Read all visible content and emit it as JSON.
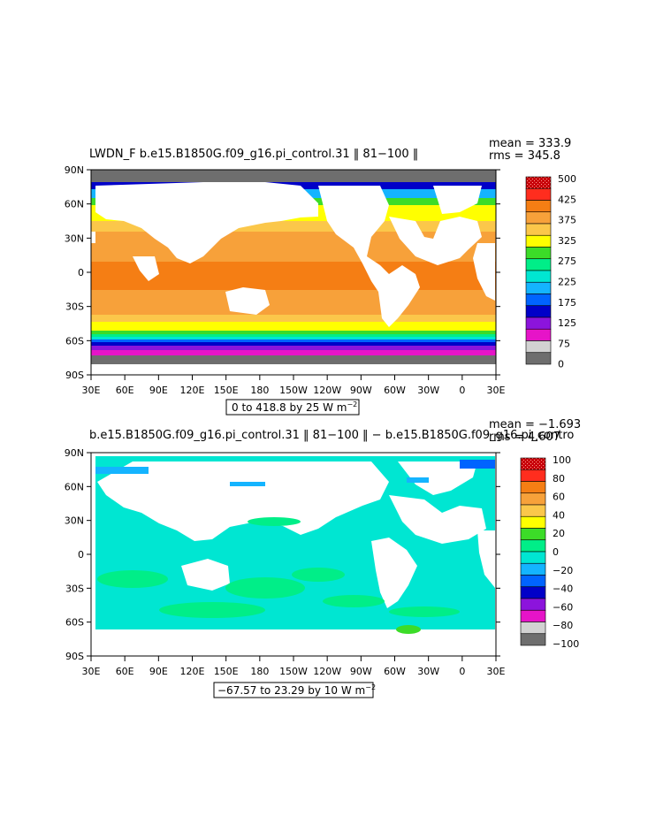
{
  "panels": [
    {
      "title": "LWDN_F  b.e15.B1850G.f09_g16.pi_control.31  ‖ 81−100 ‖",
      "mean_label": "mean = 333.9",
      "rms_label": "rms = 345.8",
      "contour_info": "0 to 418.8 by 25  W m",
      "unit_exp": "−2",
      "legend_labels": [
        "500",
        "425",
        "375",
        "325",
        "275",
        "225",
        "175",
        "125",
        "75",
        "0"
      ],
      "legend_colors": [
        "#c8000a",
        "#ff2d1e",
        "#f57e14",
        "#f7a13a",
        "#fbc74a",
        "#ffff00",
        "#3cdc28",
        "#00ee88",
        "#00e6d2",
        "#14b4ff",
        "#0064ff",
        "#0000c8",
        "#8c14dc",
        "#e614c8",
        "#d2d2d2",
        "#6e6e6e"
      ]
    },
    {
      "title": "b.e15.B1850G.f09_g16.pi_control.31  ‖ 81−100 ‖  −  b.e15.B1850G.f09_g16.pi_contro",
      "mean_label": "mean = −1.693",
      "rms_label": "rms = 4.607",
      "contour_info": "−67.57 to 23.29 by 10  W m",
      "unit_exp": "−2",
      "legend_labels": [
        "100",
        "80",
        "60",
        "40",
        "20",
        "0",
        "−20",
        "−40",
        "−60",
        "−80",
        "−100"
      ],
      "legend_colors": [
        "#c8000a",
        "#ff2d1e",
        "#f57e14",
        "#f7a13a",
        "#fbc74a",
        "#ffff00",
        "#3cdc28",
        "#00ee88",
        "#00e6d2",
        "#14b4ff",
        "#0064ff",
        "#0000c8",
        "#8c14dc",
        "#e614c8",
        "#d2d2d2",
        "#6e6e6e"
      ]
    }
  ],
  "lon_labels": [
    "30E",
    "60E",
    "90E",
    "120E",
    "150E",
    "180",
    "150W",
    "120W",
    "90W",
    "60W",
    "30W",
    "0",
    "30E"
  ],
  "lat_labels": [
    "90N",
    "60N",
    "30N",
    "0",
    "30S",
    "60S",
    "90S"
  ]
}
